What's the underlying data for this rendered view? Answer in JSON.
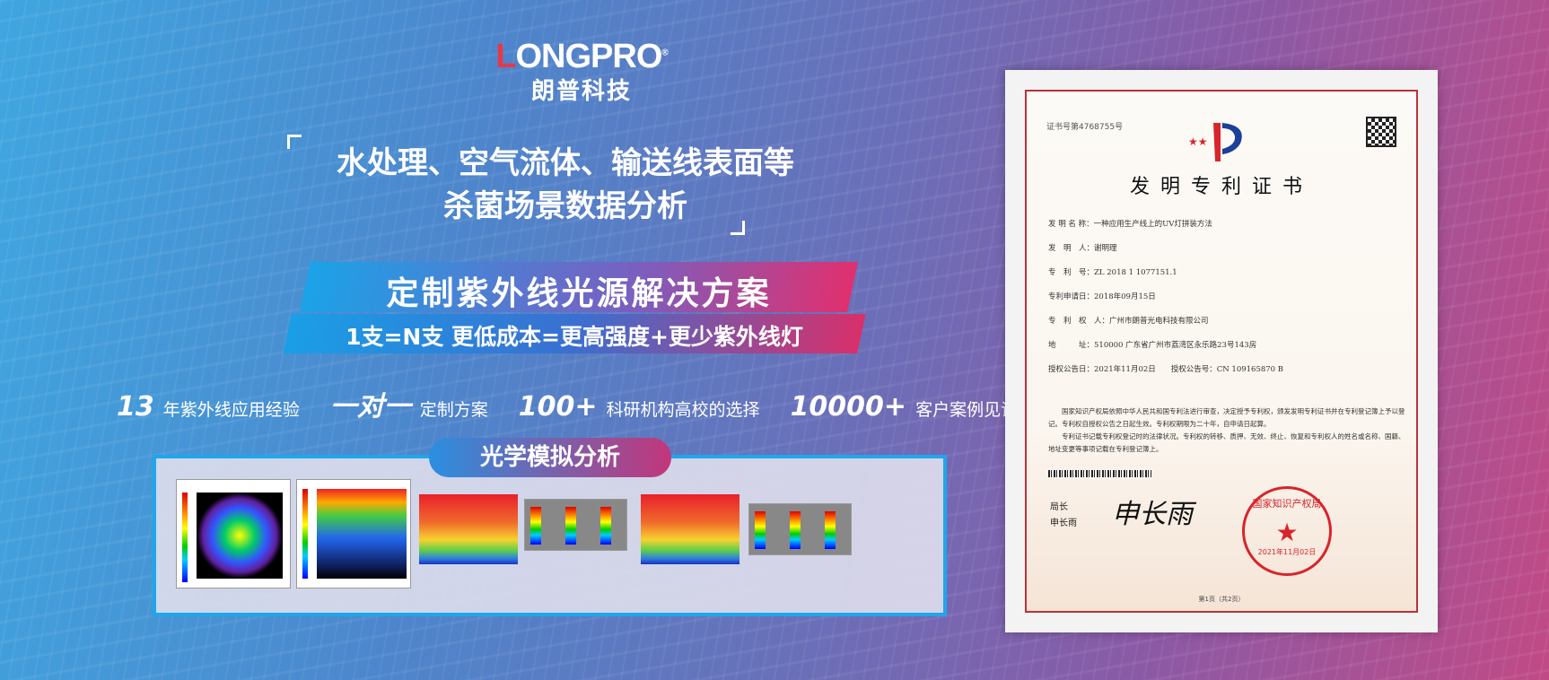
{
  "brand": {
    "name_en_prefix": "L",
    "name_en_rest": "ONGPRO",
    "registered": "®",
    "name_cn": "朗普科技"
  },
  "headline": {
    "line1": "水处理、空气流体、输送线表面等",
    "line2": "杀菌场景数据分析"
  },
  "solution": {
    "title": "定制紫外线光源解决方案",
    "subtitle": "1支=N支   更低成本=更高强度+更少紫外线灯"
  },
  "stats": [
    {
      "value": "13",
      "label": "年紫外线应用经验"
    },
    {
      "value": "一对一",
      "label": "定制方案"
    },
    {
      "value": "100+",
      "label": "科研机构高校的选择"
    },
    {
      "value": "10000+",
      "label": "客户案例见证"
    }
  ],
  "simulation": {
    "title": "光学模拟分析"
  },
  "certificate": {
    "number": "证书号第4768755号",
    "title": "发明专利证书",
    "fields": [
      "发 明 名 称：一种应用生产线上的UV灯拼装方法",
      "发　明　人：谢明理",
      "专　利　号：ZL 2018 1 1077151.1",
      "专利申请日：2018年09月15日",
      "专　利　权　人：广州市朗普光电科技有限公司",
      "地　　　址：510000 广东省广州市荔湾区永乐路23号143房",
      "授权公告日：2021年11月02日　　授权公告号：CN 109165870 B"
    ],
    "paragraph1": "国家知识产权局依照中华人民共和国专利法进行审查，决定授予专利权，颁发发明专利证书并在专利登记簿上予以登记。专利权自授权公告之日起生效。专利权期限为二十年，自申请日起算。",
    "paragraph2": "专利证书记载专利权登记时的法律状况。专利权的转移、质押、无效、终止、恢复和专利权人的姓名或名称、国籍、地址变更等事项记载在专利登记簿上。",
    "signer_title": "局长",
    "signer_name": "申长雨",
    "signature": "申长雨",
    "seal_text": "国家知识产权局",
    "seal_date": "2021年11月02日",
    "page": "第1页（共2页）"
  }
}
